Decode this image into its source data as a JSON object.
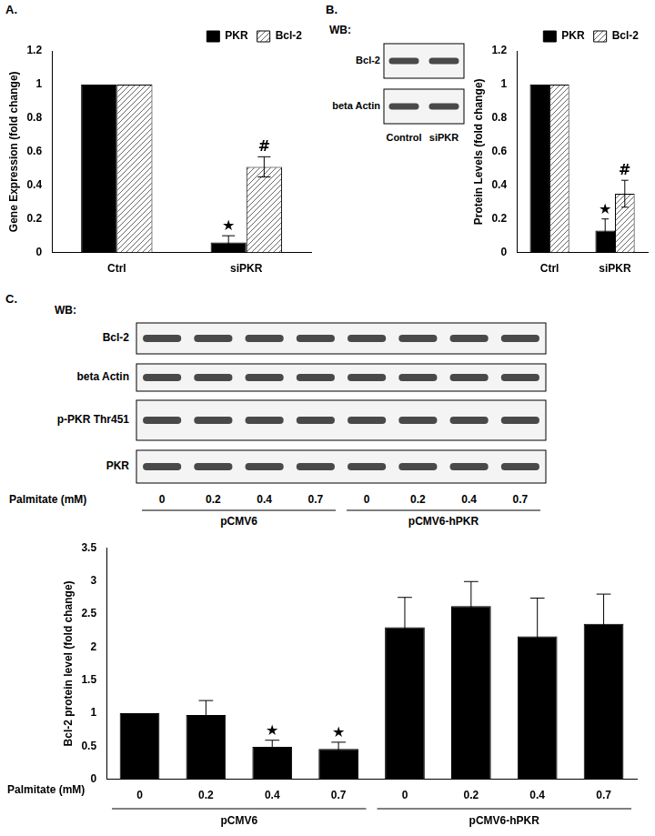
{
  "panel_labels": [
    "A.",
    "B.",
    "C."
  ],
  "blots": [
    {
      "header": "WB:",
      "rows": [
        "Bcl-2",
        "beta Actin"
      ],
      "lanes": [
        "Control",
        "siPKR"
      ]
    },
    {
      "header": "WB:",
      "rows": [
        "Bcl-2",
        "beta Actin",
        "p-PKR Thr451",
        "PKR"
      ],
      "lanes": [
        "0",
        "0.2",
        "0.4",
        "0.7",
        "0",
        "0.2",
        "0.4",
        "0.7"
      ],
      "lane_title": "Palmitate (mM)",
      "groups": [
        {
          "label": "pCMV6",
          "span": 4
        },
        {
          "label": "pCMV6-hPKR",
          "span": 4
        }
      ]
    }
  ],
  "chart_data": [
    {
      "type": "bar",
      "y_title": "Gene Expression (fold change)",
      "categories": [
        "Ctrl",
        "siPKR"
      ],
      "series": [
        {
          "name": "PKR",
          "color": "#000000",
          "marker": "solid",
          "values": [
            1,
            0.06
          ],
          "errors": [
            null,
            0.04
          ],
          "significance": [
            null,
            "★"
          ]
        },
        {
          "name": "Bcl-2",
          "color": "#000000",
          "marker": "hatch",
          "values": [
            1,
            0.51
          ],
          "errors": [
            null,
            0.06
          ],
          "significance": [
            null,
            "#"
          ]
        }
      ],
      "ylim": [
        0,
        1.2
      ],
      "yticks": [
        0,
        0.2,
        0.4,
        0.6,
        0.8,
        1,
        1.2
      ],
      "grid": false,
      "legend": "top-right"
    },
    {
      "type": "bar",
      "y_title": "Protein Levels (fold change)",
      "categories": [
        "Ctrl",
        "siPKR"
      ],
      "series": [
        {
          "name": "PKR",
          "color": "#000000",
          "marker": "solid",
          "values": [
            1,
            0.13
          ],
          "errors": [
            null,
            0.07
          ],
          "significance": [
            null,
            "★"
          ]
        },
        {
          "name": "Bcl-2",
          "color": "#000000",
          "marker": "hatch",
          "values": [
            1,
            0.35
          ],
          "errors": [
            null,
            0.08
          ],
          "significance": [
            null,
            "#"
          ]
        }
      ],
      "ylim": [
        0,
        1.2
      ],
      "yticks": [
        0,
        0.2,
        0.4,
        0.6,
        0.8,
        1,
        1.2
      ],
      "grid": false,
      "legend": "top-right"
    },
    {
      "type": "bar",
      "y_title": "Bcl-2 protein level (fold change)",
      "x_title": "Palmitate (mM)",
      "categories": [
        "0",
        "0.2",
        "0.4",
        "0.7",
        "0",
        "0.2",
        "0.4",
        "0.7"
      ],
      "groups": [
        {
          "label": "pCMV6",
          "span": 4
        },
        {
          "label": "pCMV6-hPKR",
          "span": 4
        }
      ],
      "values": [
        1,
        0.97,
        0.49,
        0.46,
        2.3,
        2.62,
        2.16,
        2.35
      ],
      "errors": [
        null,
        0.22,
        0.1,
        0.1,
        0.45,
        0.37,
        0.58,
        0.45
      ],
      "significance": [
        null,
        null,
        "★",
        "★",
        null,
        null,
        null,
        null
      ],
      "color": "#000000",
      "ylim": [
        0,
        3.5
      ],
      "yticks": [
        0,
        0.5,
        1,
        1.5,
        2,
        2.5,
        3,
        3.5
      ],
      "grid": false
    }
  ]
}
